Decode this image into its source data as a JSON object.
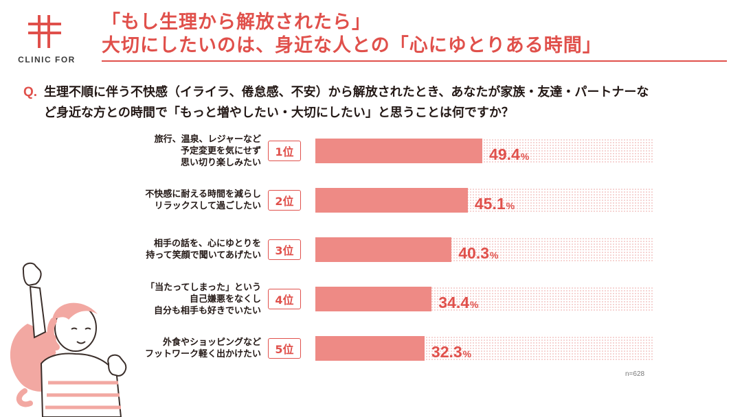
{
  "brand": {
    "name": "CLINIC FOR",
    "color": "#e0504b"
  },
  "title": {
    "line1": "「もし生理から解放されたら」",
    "line2": "大切にしたいのは、身近な人との「心にゆとりある時間」"
  },
  "question": {
    "mark": "Q.",
    "line1": "生理不順に伴う不快感（イライラ、倦怠感、不安）から解放されたとき、あなたが家族・友達・パートナーな",
    "line2": "ど身近な方との時間で「もっと増やしたい・大切にしたい」と思うことは何ですか？"
  },
  "chart_data": {
    "type": "bar",
    "orientation": "horizontal",
    "ylim": [
      0,
      100
    ],
    "unit": "%",
    "sample_size": "n=628",
    "bar_color": "#ee8a85",
    "accent_color": "#e0504b",
    "items": [
      {
        "rank": "1位",
        "label_lines": [
          "旅行、温泉、レジャーなど",
          "予定変更を気にせず",
          "思い切り楽しみたい"
        ],
        "value": 49.4,
        "value_text": "49.4"
      },
      {
        "rank": "2位",
        "label_lines": [
          "不快感に耐える時間を減らし",
          "リラックスして過ごしたい"
        ],
        "value": 45.1,
        "value_text": "45.1"
      },
      {
        "rank": "3位",
        "label_lines": [
          "相手の話を、心にゆとりを",
          "持って笑顔で聞いてあげたい"
        ],
        "value": 40.3,
        "value_text": "40.3"
      },
      {
        "rank": "4位",
        "label_lines": [
          "「当たってしまった」という",
          "自己嫌悪をなくし",
          "自分も相手も好きでいたい"
        ],
        "value": 34.4,
        "value_text": "34.4"
      },
      {
        "rank": "5位",
        "label_lines": [
          "外食やショッピングなど",
          "フットワーク軽く出かけたい"
        ],
        "value": 32.3,
        "value_text": "32.3"
      }
    ]
  },
  "icons": {
    "logo": "clinic-cross-logo-icon",
    "illustration": "cheering-woman-illustration"
  }
}
